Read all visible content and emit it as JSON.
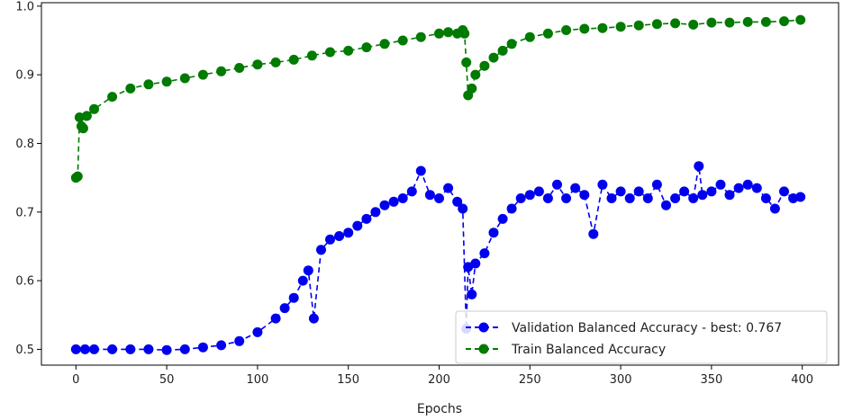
{
  "chart_data": {
    "type": "line",
    "xlabel": "Epochs",
    "ylabel": "",
    "xlim": [
      -19,
      420
    ],
    "ylim": [
      0.477,
      1.005
    ],
    "xticks": [
      0,
      50,
      100,
      150,
      200,
      250,
      300,
      350,
      400
    ],
    "yticks": [
      0.5,
      0.6,
      0.7,
      0.8,
      0.9,
      1.0
    ],
    "yticklabels": [
      "0.5",
      "0.6",
      "0.7",
      "0.8",
      "0.9",
      "1.0"
    ],
    "grid": false,
    "legend_position": "lower-right",
    "series": [
      {
        "name": "Validation Balanced Accuracy - best: 0.767",
        "color": "#0000ee",
        "linestyle": "dashed",
        "marker": "circle",
        "x": [
          0,
          5,
          10,
          20,
          30,
          40,
          50,
          60,
          70,
          80,
          90,
          100,
          110,
          115,
          120,
          125,
          128,
          131,
          135,
          140,
          145,
          150,
          155,
          160,
          165,
          170,
          175,
          180,
          185,
          190,
          195,
          200,
          205,
          210,
          213,
          215,
          216,
          218,
          220,
          225,
          230,
          235,
          240,
          245,
          250,
          255,
          260,
          265,
          270,
          275,
          280,
          285,
          290,
          295,
          300,
          305,
          310,
          315,
          320,
          325,
          330,
          335,
          340,
          343,
          345,
          350,
          355,
          360,
          365,
          370,
          375,
          380,
          385,
          390,
          395,
          399
        ],
        "y": [
          0.5,
          0.5,
          0.5,
          0.5,
          0.5,
          0.5,
          0.499,
          0.5,
          0.503,
          0.506,
          0.512,
          0.525,
          0.545,
          0.56,
          0.575,
          0.6,
          0.615,
          0.545,
          0.645,
          0.66,
          0.665,
          0.67,
          0.68,
          0.69,
          0.7,
          0.71,
          0.715,
          0.72,
          0.73,
          0.76,
          0.725,
          0.72,
          0.735,
          0.715,
          0.705,
          0.53,
          0.62,
          0.58,
          0.625,
          0.64,
          0.67,
          0.69,
          0.705,
          0.72,
          0.725,
          0.73,
          0.72,
          0.74,
          0.72,
          0.735,
          0.725,
          0.668,
          0.74,
          0.72,
          0.73,
          0.72,
          0.73,
          0.72,
          0.74,
          0.71,
          0.72,
          0.73,
          0.72,
          0.767,
          0.725,
          0.73,
          0.74,
          0.725,
          0.735,
          0.74,
          0.735,
          0.72,
          0.705,
          0.73,
          0.72,
          0.722
        ]
      },
      {
        "name": "Train Balanced Accuracy",
        "color": "#007a00",
        "linestyle": "dashed",
        "marker": "circle",
        "x": [
          0,
          1,
          2,
          3,
          4,
          6,
          10,
          20,
          30,
          40,
          50,
          60,
          70,
          80,
          90,
          100,
          110,
          120,
          130,
          140,
          150,
          160,
          170,
          180,
          190,
          200,
          205,
          210,
          213,
          214,
          215,
          216,
          218,
          220,
          225,
          230,
          235,
          240,
          250,
          260,
          270,
          280,
          290,
          300,
          310,
          320,
          330,
          340,
          350,
          360,
          370,
          380,
          390,
          399
        ],
        "y": [
          0.75,
          0.752,
          0.838,
          0.825,
          0.822,
          0.84,
          0.85,
          0.868,
          0.88,
          0.886,
          0.89,
          0.895,
          0.9,
          0.905,
          0.91,
          0.915,
          0.918,
          0.922,
          0.928,
          0.933,
          0.935,
          0.94,
          0.945,
          0.95,
          0.955,
          0.96,
          0.962,
          0.96,
          0.965,
          0.96,
          0.918,
          0.87,
          0.88,
          0.9,
          0.913,
          0.925,
          0.935,
          0.945,
          0.955,
          0.96,
          0.965,
          0.967,
          0.968,
          0.97,
          0.972,
          0.974,
          0.975,
          0.973,
          0.976,
          0.976,
          0.977,
          0.977,
          0.978,
          0.98
        ]
      }
    ]
  }
}
